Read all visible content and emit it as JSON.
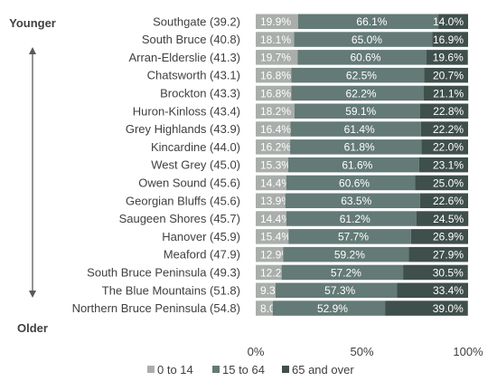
{
  "chart_data": {
    "type": "bar",
    "orientation": "horizontal",
    "stacked": true,
    "categories": [
      "Southgate (39.2)",
      "South Bruce (40.8)",
      "Arran-Elderslie (41.3)",
      "Chatsworth (43.1)",
      "Brockton (43.3)",
      "Huron-Kinloss (43.4)",
      "Grey Highlands (43.9)",
      "Kincardine (44.0)",
      "West Grey (45.0)",
      "Owen Sound (45.6)",
      "Georgian Bluffs (45.6)",
      "Saugeen Shores (45.7)",
      "Hanover (45.9)",
      "Meaford (47.9)",
      "South Bruce Peninsula (49.3)",
      "The Blue Mountains (51.8)",
      "Northern Bruce Peninsula (54.8)"
    ],
    "series": [
      {
        "name": "0 to 14",
        "color": "#a9aeab",
        "values": [
          19.9,
          18.1,
          19.7,
          16.8,
          16.8,
          18.2,
          16.4,
          16.2,
          15.3,
          14.4,
          13.9,
          14.4,
          15.4,
          12.9,
          12.2,
          9.3,
          8.0
        ]
      },
      {
        "name": "15 to 64",
        "color": "#637a76",
        "values": [
          66.1,
          65.0,
          60.6,
          62.5,
          62.2,
          59.1,
          61.4,
          61.8,
          61.6,
          60.6,
          63.5,
          61.2,
          57.7,
          59.2,
          57.2,
          57.3,
          52.9
        ]
      },
      {
        "name": "65 and over",
        "color": "#3f4f4b",
        "values": [
          14.0,
          16.9,
          19.6,
          20.7,
          21.1,
          22.8,
          22.2,
          22.0,
          23.1,
          25.0,
          22.6,
          24.5,
          26.9,
          27.9,
          30.5,
          33.4,
          39.0
        ]
      }
    ],
    "xlim": [
      0,
      100
    ],
    "x_ticks": [
      "0%",
      "50%",
      "100%"
    ],
    "top_label": "Younger",
    "bottom_label": "Older",
    "legend_position": "bottom",
    "grid": false,
    "arrow_color": "#595959"
  }
}
